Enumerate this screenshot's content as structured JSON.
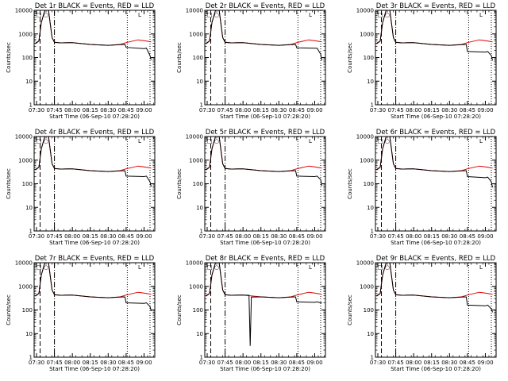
{
  "colors": {
    "events": "#000000",
    "lld": "#e00000",
    "axes": "#000000",
    "background": "#ffffff"
  },
  "common": {
    "ylabel": "Counts/sec",
    "xlabel": "Start Time (06-Sep-10 07:28:20)",
    "yticks": [
      "1",
      "10",
      "100",
      "1000",
      "10000"
    ],
    "ylim": [
      1,
      10000
    ],
    "y_scale": "log",
    "xlim": [
      "07:28",
      "09:09"
    ],
    "xticks": [
      "07:30",
      "07:45",
      "08:00",
      "08:15",
      "08:30",
      "08:45",
      "09:00"
    ],
    "dashed_line_at": "07:33",
    "dashdot_line_at": "07:45",
    "dotted_lines_at": [
      "08:46",
      "09:05"
    ],
    "legend_text": [
      "BLACK = Events",
      "RED = LLD"
    ],
    "corner_marks": [
      "□ ○",
      "L"
    ]
  },
  "chart_data": [
    {
      "type": "line",
      "title": "Det 1r BLACK = Events, RED = LLD",
      "series": [
        {
          "name": "BLACK = Events",
          "x": [
            "07:29",
            "07:32",
            "07:34",
            "07:37",
            "07:40",
            "07:43",
            "07:45",
            "07:50",
            "07:52",
            "07:55",
            "08:00",
            "08:15",
            "08:30",
            "08:40",
            "08:44",
            "08:45",
            "09:00",
            "09:02",
            "09:05",
            "09:06"
          ],
          "y": [
            400,
            500,
            3000,
            10000,
            10000,
            700,
            440,
            420,
            420,
            430,
            430,
            360,
            330,
            350,
            360,
            270,
            240,
            250,
            120,
            80
          ]
        },
        {
          "name": "RED = LLD",
          "x": [
            "07:29",
            "07:32",
            "07:34",
            "07:37",
            "07:40",
            "07:43",
            "07:45",
            "07:50",
            "08:00",
            "08:15",
            "08:30",
            "08:40",
            "08:45",
            "08:55",
            "09:00",
            "09:06"
          ],
          "y": [
            380,
            500,
            3000,
            10000,
            10000,
            700,
            450,
            420,
            430,
            360,
            330,
            360,
            430,
            560,
            520,
            460
          ]
        }
      ]
    },
    {
      "type": "line",
      "title": "Det 2r BLACK = Events, RED = LLD",
      "series": [
        {
          "name": "BLACK = Events",
          "x": [
            "07:29",
            "07:32",
            "07:34",
            "07:37",
            "07:40",
            "07:43",
            "07:45",
            "07:50",
            "07:52",
            "07:55",
            "08:00",
            "08:15",
            "08:30",
            "08:40",
            "08:44",
            "08:45",
            "09:00",
            "09:02",
            "09:05",
            "09:06"
          ],
          "y": [
            400,
            500,
            3000,
            10000,
            10000,
            700,
            440,
            420,
            420,
            430,
            430,
            360,
            330,
            350,
            360,
            260,
            250,
            250,
            140,
            75
          ]
        },
        {
          "name": "RED = LLD",
          "x": [
            "07:29",
            "07:32",
            "07:34",
            "07:37",
            "07:40",
            "07:43",
            "07:45",
            "07:50",
            "08:00",
            "08:15",
            "08:30",
            "08:40",
            "08:45",
            "08:55",
            "09:00",
            "09:06"
          ],
          "y": [
            380,
            500,
            3000,
            10000,
            10000,
            700,
            450,
            420,
            430,
            360,
            330,
            360,
            430,
            560,
            520,
            460
          ]
        }
      ]
    },
    {
      "type": "line",
      "title": "Det 3r BLACK = Events, RED = LLD",
      "series": [
        {
          "name": "BLACK = Events",
          "x": [
            "07:29",
            "07:32",
            "07:34",
            "07:37",
            "07:40",
            "07:43",
            "07:45",
            "07:50",
            "07:52",
            "07:55",
            "08:00",
            "08:15",
            "08:30",
            "08:40",
            "08:44",
            "08:45",
            "09:00",
            "09:02",
            "09:05",
            "09:06"
          ],
          "y": [
            400,
            500,
            3000,
            10000,
            10000,
            700,
            440,
            420,
            420,
            430,
            430,
            360,
            330,
            350,
            360,
            180,
            170,
            180,
            120,
            75
          ]
        },
        {
          "name": "RED = LLD",
          "x": [
            "07:29",
            "07:32",
            "07:34",
            "07:37",
            "07:40",
            "07:43",
            "07:45",
            "07:50",
            "08:00",
            "08:15",
            "08:30",
            "08:40",
            "08:45",
            "08:55",
            "09:00",
            "09:06"
          ],
          "y": [
            380,
            500,
            3000,
            10000,
            10000,
            700,
            450,
            420,
            430,
            360,
            330,
            360,
            430,
            560,
            520,
            460
          ]
        }
      ]
    },
    {
      "type": "line",
      "title": "Det 4r BLACK = Events, RED = LLD",
      "series": [
        {
          "name": "BLACK = Events",
          "x": [
            "07:29",
            "07:32",
            "07:34",
            "07:37",
            "07:40",
            "07:43",
            "07:45",
            "07:50",
            "07:52",
            "07:55",
            "08:00",
            "08:15",
            "08:30",
            "08:40",
            "08:44",
            "08:45",
            "09:00",
            "09:02",
            "09:05",
            "09:06"
          ],
          "y": [
            400,
            500,
            3000,
            10000,
            10000,
            700,
            440,
            420,
            420,
            430,
            430,
            360,
            330,
            350,
            360,
            210,
            200,
            210,
            120,
            75
          ]
        },
        {
          "name": "RED = LLD",
          "x": [
            "07:29",
            "07:32",
            "07:34",
            "07:37",
            "07:40",
            "07:43",
            "07:45",
            "07:50",
            "08:00",
            "08:15",
            "08:30",
            "08:40",
            "08:45",
            "08:55",
            "09:00",
            "09:06"
          ],
          "y": [
            380,
            500,
            3000,
            10000,
            10000,
            700,
            450,
            420,
            430,
            360,
            330,
            360,
            430,
            560,
            520,
            460
          ]
        }
      ]
    },
    {
      "type": "line",
      "title": "Det 5r BLACK = Events, RED = LLD",
      "series": [
        {
          "name": "BLACK = Events",
          "x": [
            "07:29",
            "07:32",
            "07:34",
            "07:37",
            "07:40",
            "07:43",
            "07:45",
            "07:50",
            "07:52",
            "07:55",
            "08:00",
            "08:15",
            "08:30",
            "08:40",
            "08:44",
            "08:45",
            "09:00",
            "09:02",
            "09:05",
            "09:06"
          ],
          "y": [
            400,
            500,
            3000,
            10000,
            10000,
            700,
            440,
            420,
            420,
            430,
            430,
            360,
            330,
            350,
            360,
            210,
            200,
            210,
            150,
            80
          ]
        },
        {
          "name": "RED = LLD",
          "x": [
            "07:29",
            "07:32",
            "07:34",
            "07:37",
            "07:40",
            "07:43",
            "07:45",
            "07:50",
            "08:00",
            "08:15",
            "08:30",
            "08:40",
            "08:45",
            "08:55",
            "09:00",
            "09:06"
          ],
          "y": [
            380,
            500,
            3000,
            10000,
            10000,
            700,
            450,
            420,
            430,
            360,
            330,
            360,
            430,
            560,
            520,
            460
          ]
        }
      ]
    },
    {
      "type": "line",
      "title": "Det 6r BLACK = Events, RED = LLD",
      "series": [
        {
          "name": "BLACK = Events",
          "x": [
            "07:29",
            "07:32",
            "07:34",
            "07:37",
            "07:40",
            "07:43",
            "07:45",
            "07:50",
            "07:52",
            "07:55",
            "08:00",
            "08:15",
            "08:30",
            "08:40",
            "08:44",
            "08:45",
            "09:00",
            "09:02",
            "09:05",
            "09:06"
          ],
          "y": [
            400,
            500,
            3000,
            10000,
            10000,
            700,
            440,
            420,
            420,
            430,
            430,
            360,
            330,
            350,
            360,
            200,
            180,
            190,
            120,
            70
          ]
        },
        {
          "name": "RED = LLD",
          "x": [
            "07:29",
            "07:32",
            "07:34",
            "07:37",
            "07:40",
            "07:43",
            "07:45",
            "07:50",
            "08:00",
            "08:15",
            "08:30",
            "08:40",
            "08:45",
            "08:55",
            "09:00",
            "09:06"
          ],
          "y": [
            380,
            500,
            3000,
            10000,
            10000,
            700,
            450,
            420,
            430,
            360,
            330,
            360,
            430,
            560,
            520,
            460
          ]
        }
      ]
    },
    {
      "type": "line",
      "title": "Det 7r BLACK = Events, RED = LLD",
      "series": [
        {
          "name": "BLACK = Events",
          "x": [
            "07:29",
            "07:32",
            "07:34",
            "07:37",
            "07:40",
            "07:43",
            "07:45",
            "07:50",
            "07:52",
            "07:55",
            "08:00",
            "08:15",
            "08:30",
            "08:40",
            "08:44",
            "08:45",
            "09:00",
            "09:02",
            "09:05",
            "09:06"
          ],
          "y": [
            400,
            500,
            3000,
            10000,
            10000,
            700,
            440,
            420,
            420,
            430,
            430,
            360,
            330,
            350,
            360,
            200,
            190,
            200,
            140,
            90
          ]
        },
        {
          "name": "RED = LLD",
          "x": [
            "07:29",
            "07:32",
            "07:34",
            "07:37",
            "07:40",
            "07:43",
            "07:45",
            "07:50",
            "08:00",
            "08:15",
            "08:30",
            "08:40",
            "08:45",
            "08:55",
            "09:00",
            "09:06"
          ],
          "y": [
            380,
            500,
            3000,
            10000,
            10000,
            700,
            450,
            420,
            430,
            360,
            330,
            360,
            430,
            560,
            520,
            460
          ]
        }
      ]
    },
    {
      "type": "line",
      "title": "Det 8r BLACK = Events, RED = LLD",
      "series": [
        {
          "name": "BLACK = Events",
          "x": [
            "07:29",
            "07:32",
            "07:34",
            "07:37",
            "07:40",
            "07:43",
            "07:45",
            "07:50",
            "07:55",
            "08:00",
            "08:05",
            "08:06",
            "08:07",
            "08:15",
            "08:30",
            "08:40",
            "08:44",
            "08:45",
            "09:00",
            "09:02",
            "09:05",
            "09:06"
          ],
          "y": [
            400,
            500,
            3000,
            10000,
            10000,
            700,
            440,
            420,
            430,
            430,
            420,
            3,
            350,
            360,
            330,
            350,
            360,
            220,
            210,
            220,
            200,
            200
          ]
        },
        {
          "name": "RED = LLD",
          "x": [
            "07:29",
            "07:32",
            "07:34",
            "07:37",
            "07:40",
            "07:43",
            "07:45",
            "07:50",
            "08:00",
            "08:15",
            "08:30",
            "08:40",
            "08:45",
            "08:55",
            "09:00",
            "09:06"
          ],
          "y": [
            380,
            500,
            3000,
            10000,
            10000,
            700,
            450,
            420,
            430,
            360,
            330,
            360,
            430,
            560,
            520,
            460
          ]
        }
      ]
    },
    {
      "type": "line",
      "title": "Det 9r BLACK = Events, RED = LLD",
      "series": [
        {
          "name": "BLACK = Events",
          "x": [
            "07:29",
            "07:32",
            "07:34",
            "07:37",
            "07:40",
            "07:43",
            "07:45",
            "07:50",
            "07:52",
            "07:55",
            "08:00",
            "08:15",
            "08:30",
            "08:40",
            "08:44",
            "08:45",
            "09:00",
            "09:02",
            "09:05",
            "09:06"
          ],
          "y": [
            400,
            500,
            3000,
            10000,
            10000,
            700,
            440,
            420,
            420,
            430,
            430,
            360,
            330,
            350,
            360,
            160,
            150,
            160,
            110,
            80
          ]
        },
        {
          "name": "RED = LLD",
          "x": [
            "07:29",
            "07:32",
            "07:34",
            "07:37",
            "07:40",
            "07:43",
            "07:45",
            "07:50",
            "08:00",
            "08:15",
            "08:30",
            "08:40",
            "08:45",
            "08:55",
            "09:00",
            "09:06"
          ],
          "y": [
            380,
            500,
            3000,
            10000,
            10000,
            700,
            450,
            420,
            430,
            360,
            330,
            360,
            430,
            560,
            520,
            460
          ]
        }
      ]
    }
  ]
}
